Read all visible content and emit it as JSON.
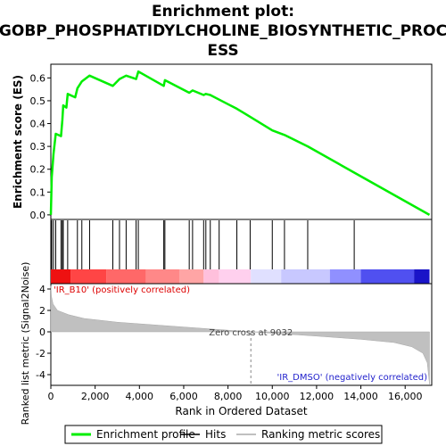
{
  "chart_data": {
    "type": "line",
    "title": "Enrichment plot: GOBP_PHOSPHATIDYLCHOLINE_BIOSYNTHETIC_PROCESS",
    "title_lines": [
      "Enrichment plot:",
      "GOBP_PHOSPHATIDYLCHOLINE_BIOSYNTHETIC_PROC",
      "ESS"
    ],
    "xlabel": "Rank in Ordered Dataset",
    "xlim": [
      0,
      17200
    ],
    "x_ticks": [
      0,
      2000,
      4000,
      6000,
      8000,
      10000,
      12000,
      14000,
      16000
    ],
    "x_tick_labels": [
      "0",
      "2,000",
      "4,000",
      "6,000",
      "8,000",
      "10,000",
      "12,000",
      "14,000",
      "16,000"
    ],
    "es_panel": {
      "ylabel": "Enrichment score (ES)",
      "ylim": [
        -0.02,
        0.66
      ],
      "y_ticks": [
        0.0,
        0.1,
        0.2,
        0.3,
        0.4,
        0.5,
        0.6
      ],
      "y_tick_labels": [
        "0.0",
        "0.1",
        "0.2",
        "0.3",
        "0.4",
        "0.5",
        "0.6"
      ],
      "series": [
        {
          "name": "Enrichment profile",
          "color": "#00ee00",
          "x": [
            0,
            40,
            40,
            120,
            120,
            220,
            220,
            460,
            460,
            520,
            520,
            560,
            560,
            700,
            700,
            760,
            760,
            1100,
            1100,
            1200,
            1200,
            1400,
            1400,
            1750,
            1750,
            2800,
            2800,
            3100,
            3100,
            3400,
            3400,
            3850,
            3850,
            3950,
            3950,
            5100,
            5100,
            5150,
            5150,
            6250,
            6250,
            6400,
            6400,
            6900,
            6900,
            7000,
            7000,
            7200,
            7200,
            7600,
            7600,
            8400,
            8400,
            9000,
            9000,
            10000,
            10000,
            10550,
            10550,
            11600,
            11600,
            13700,
            13700,
            17100
          ],
          "y": [
            0.0,
            0.165,
            0.165,
            0.268,
            0.268,
            0.355,
            0.355,
            0.345,
            0.345,
            0.415,
            0.415,
            0.48,
            0.48,
            0.47,
            0.47,
            0.53,
            0.53,
            0.515,
            0.515,
            0.555,
            0.555,
            0.585,
            0.585,
            0.61,
            0.61,
            0.565,
            0.565,
            0.595,
            0.595,
            0.61,
            0.61,
            0.595,
            0.595,
            0.628,
            0.628,
            0.565,
            0.565,
            0.59,
            0.59,
            0.535,
            0.535,
            0.545,
            0.545,
            0.525,
            0.525,
            0.53,
            0.53,
            0.525,
            0.525,
            0.505,
            0.505,
            0.465,
            0.465,
            0.43,
            0.43,
            0.37,
            0.37,
            0.35,
            0.35,
            0.3,
            0.3,
            0.185,
            0.185,
            0.0
          ]
        }
      ]
    },
    "hits_panel": {
      "series_name": "Hits",
      "hit_ranks": [
        40,
        120,
        220,
        460,
        520,
        560,
        760,
        1200,
        1400,
        1750,
        2800,
        3100,
        3400,
        3850,
        3950,
        5100,
        5150,
        6250,
        6400,
        6900,
        7000,
        7200,
        7600,
        8400,
        9000,
        10000,
        10550,
        11600,
        13700
      ]
    },
    "metric_panel": {
      "ylabel": "Ranked list metric (Signal2Noise)",
      "series_name": "Ranking metric scores",
      "ylim": [
        -5,
        4.5
      ],
      "y_ticks": [
        -4,
        -2,
        0,
        2,
        4
      ],
      "y_tick_labels": [
        "-4",
        "-2",
        "0",
        "2",
        "4"
      ],
      "zero_cross_rank": 9032,
      "zero_cross_label": "Zero cross at 9032",
      "profile_x": [
        0,
        30,
        100,
        300,
        800,
        1500,
        3000,
        6000,
        9032,
        12000,
        14000,
        15500,
        16300,
        16800,
        17000,
        17100
      ],
      "profile_y": [
        4.3,
        3.3,
        2.6,
        2.0,
        1.6,
        1.25,
        0.9,
        0.45,
        0.0,
        -0.4,
        -0.7,
        -1.0,
        -1.4,
        -2.0,
        -2.9,
        -4.9
      ],
      "pos_label": "'IR_B10' (positively correlated)",
      "neg_label": "'IR_DMSO' (negatively correlated)"
    },
    "gradient_bar": {
      "segments": [
        {
          "x0": 0,
          "x1": 900,
          "color": "#ee1111"
        },
        {
          "x0": 900,
          "x1": 2500,
          "color": "#ff4545"
        },
        {
          "x0": 2500,
          "x1": 4300,
          "color": "#ff6868"
        },
        {
          "x0": 4300,
          "x1": 5800,
          "color": "#ff8888"
        },
        {
          "x0": 5800,
          "x1": 6900,
          "color": "#ffa5a5"
        },
        {
          "x0": 6900,
          "x1": 7600,
          "color": "#ffc0dc"
        },
        {
          "x0": 7600,
          "x1": 9032,
          "color": "#ffd0ee"
        },
        {
          "x0": 9032,
          "x1": 10400,
          "color": "#e0e0ff"
        },
        {
          "x0": 10400,
          "x1": 12600,
          "color": "#c8c8ff"
        },
        {
          "x0": 12600,
          "x1": 14000,
          "color": "#9090ff"
        },
        {
          "x0": 14000,
          "x1": 16400,
          "color": "#5050f0"
        },
        {
          "x0": 16400,
          "x1": 17100,
          "color": "#1a14c8"
        }
      ]
    },
    "legend": {
      "placement": "bottom",
      "items": [
        {
          "label": "Enrichment profile",
          "color": "#00ee00"
        },
        {
          "label": "Hits",
          "color": "#000000"
        },
        {
          "label": "Ranking metric scores",
          "color": "#c0c0c0"
        }
      ]
    }
  }
}
